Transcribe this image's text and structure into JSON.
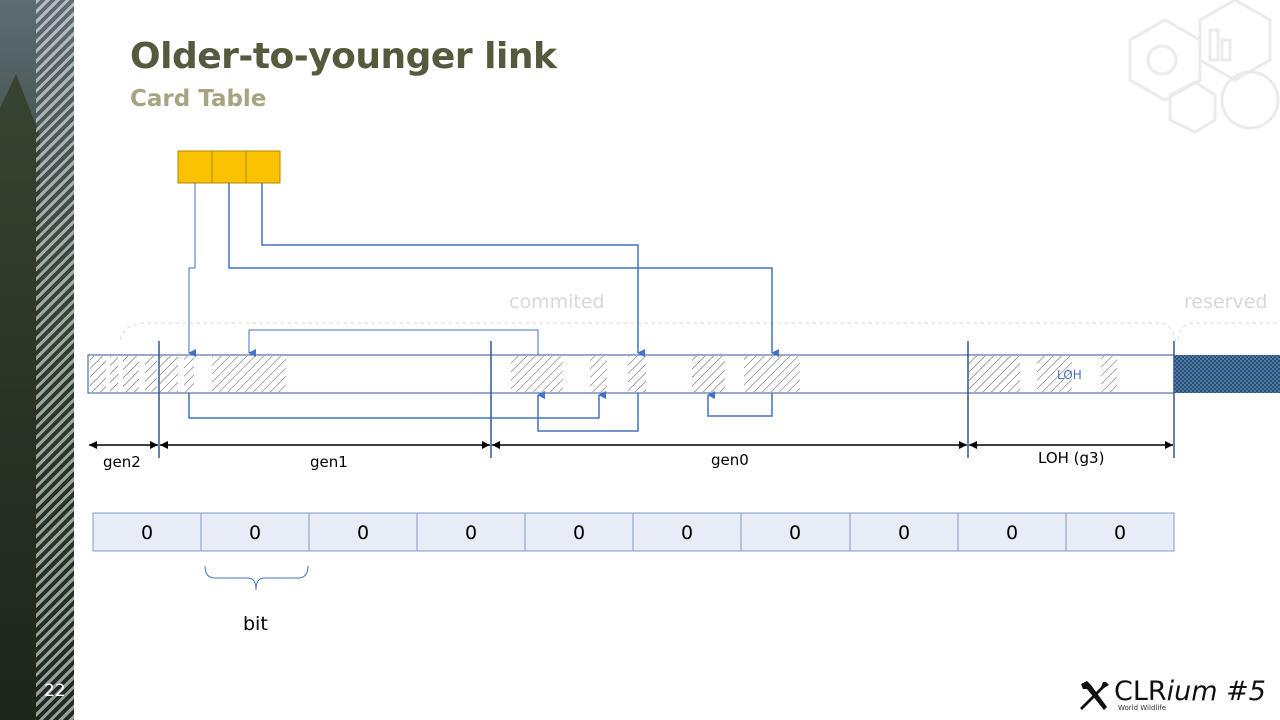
{
  "slide": {
    "title": "Older-to-younger link",
    "subtitle": "Card Table",
    "number": "22"
  },
  "heap": {
    "commited_label": "commited",
    "reserved_label": "reserved",
    "loh_inner_label": "LOH",
    "generations": [
      "gen2",
      "gen1",
      "gen0",
      "LOH (g3)"
    ]
  },
  "card_table": {
    "cells": [
      "0",
      "0",
      "0",
      "0",
      "0",
      "0",
      "0",
      "0",
      "0",
      "0"
    ],
    "brace_label": "bit"
  },
  "colors": {
    "card_bytes": "#fbc200",
    "link_lines": "#4472c4",
    "title": "#545a3c",
    "subtitle": "#a7a482",
    "card_cell_fill": "#e8ecf7",
    "card_cell_border": "#7f9dc8"
  },
  "icons": {
    "logo": "hammer-wrench-icon",
    "watermark": "cube-pictograms-icon"
  },
  "logo": {
    "brand_main": "CLR",
    "brand_italic": "ium",
    "brand_number": " #5",
    "tagline": "World Wildlife"
  }
}
